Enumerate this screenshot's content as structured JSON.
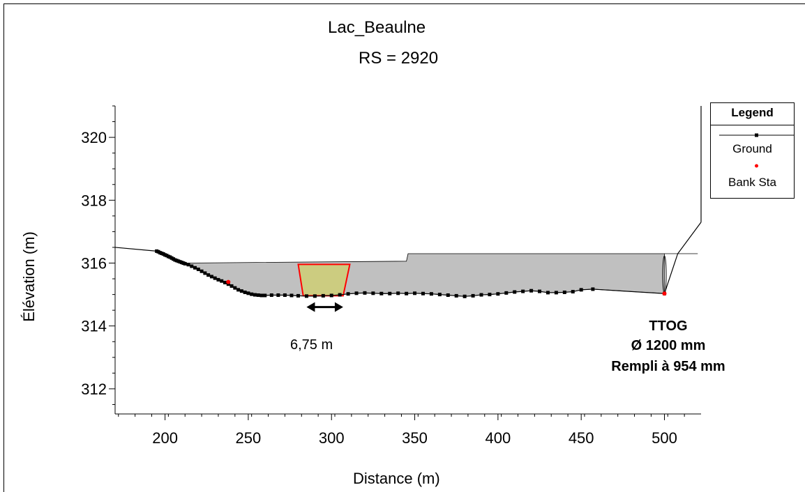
{
  "chart_data": {
    "type": "line",
    "title": "Lac_Beaulne",
    "subtitle": "RS = 2920",
    "xlabel": "Distance (m)",
    "ylabel": "Élévation (m)",
    "xlim": [
      170,
      522
    ],
    "ylim": [
      311.2,
      321.0
    ],
    "x_ticks": [
      200,
      250,
      300,
      350,
      400,
      450,
      500
    ],
    "y_ticks": [
      312,
      314,
      316,
      318,
      320
    ],
    "legend": {
      "title": "Legend",
      "position": "right",
      "entries": [
        {
          "name": "Ground",
          "marker": "square",
          "color": "#000000"
        },
        {
          "name": "Bank Sta",
          "marker": "circle",
          "color": "#ff0000"
        }
      ]
    },
    "series": [
      {
        "name": "Ground",
        "color": "#000000",
        "x": [
          170,
          195,
          196,
          197,
          198,
          199,
          200,
          201,
          202,
          203,
          204,
          205,
          206,
          207,
          208,
          209,
          210,
          211,
          212,
          214,
          216,
          218,
          220,
          222,
          224,
          226,
          228,
          230,
          232,
          234,
          236,
          238,
          240,
          242,
          244,
          246,
          248,
          250,
          252,
          254,
          256,
          258,
          260,
          264,
          268,
          272,
          276,
          280,
          285,
          290,
          295,
          300,
          305,
          310,
          315,
          320,
          325,
          330,
          335,
          340,
          345,
          350,
          355,
          360,
          365,
          370,
          375,
          380,
          385,
          390,
          395,
          400,
          405,
          410,
          415,
          420,
          425,
          430,
          435,
          440,
          445,
          450,
          457,
          500
        ],
        "y": [
          316.5,
          316.38,
          316.36,
          316.33,
          316.31,
          316.29,
          316.26,
          316.24,
          316.21,
          316.19,
          316.16,
          316.13,
          316.1,
          316.08,
          316.06,
          316.04,
          316.02,
          316.0,
          315.98,
          315.95,
          315.9,
          315.85,
          315.8,
          315.74,
          315.68,
          315.62,
          315.57,
          315.52,
          315.47,
          315.43,
          315.38,
          315.33,
          315.27,
          315.21,
          315.15,
          315.11,
          315.07,
          315.04,
          315.01,
          314.99,
          314.98,
          314.97,
          314.97,
          314.98,
          314.98,
          314.98,
          314.97,
          314.96,
          314.95,
          314.95,
          314.96,
          314.97,
          314.99,
          315.02,
          315.04,
          315.05,
          315.04,
          315.03,
          315.03,
          315.04,
          315.03,
          315.04,
          315.03,
          315.02,
          315.0,
          314.98,
          314.96,
          314.94,
          314.96,
          314.99,
          315.0,
          315.02,
          315.05,
          315.08,
          315.1,
          315.12,
          315.1,
          315.06,
          315.06,
          315.07,
          315.09,
          315.15,
          315.17,
          315.03
        ]
      },
      {
        "name": "Bank Sta",
        "color": "#ff0000",
        "x": [
          238,
          500
        ],
        "y": [
          315.4,
          315.03
        ]
      }
    ],
    "fill": {
      "color": "#c0c0c0",
      "top_x": [
        212,
        345,
        346,
        520
      ],
      "top_y": [
        316.0,
        316.06,
        316.3,
        316.3
      ]
    },
    "bank_wall": {
      "x": [
        500,
        508,
        522
      ],
      "y": [
        315.03,
        316.3,
        317.3
      ]
    },
    "pipe": {
      "x": 500,
      "y_bottom": 315.03,
      "y_top": 316.23
    },
    "trapezoid": {
      "fill": "#cccc80",
      "stroke": "#ff0000",
      "x": [
        280,
        311,
        307,
        283
      ],
      "y": [
        315.96,
        315.96,
        314.96,
        314.96
      ]
    },
    "dimension_arrow": {
      "x1": 285,
      "x2": 307,
      "y": 314.6
    },
    "annotations": {
      "width_label": "6,75 m",
      "pipe_lines": [
        "TTOG",
        "Ø 1200 mm",
        "Rempli à 954 mm"
      ]
    }
  }
}
